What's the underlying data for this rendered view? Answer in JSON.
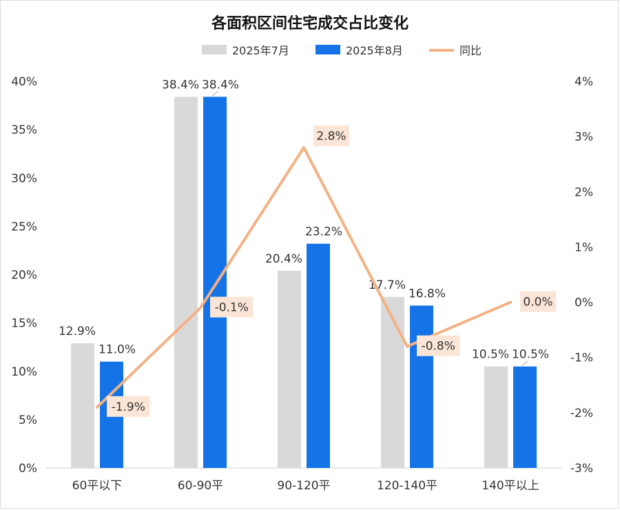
{
  "chart_data": {
    "type": "bar",
    "title": "各面积区间住宅成交占比变化",
    "categories": [
      "60平以下",
      "60-90平",
      "90-120平",
      "120-140平",
      "140平以上"
    ],
    "series": [
      {
        "name": "2025年7月",
        "type": "bar",
        "axis": "left",
        "color": "#d9d9d9",
        "values": [
          12.9,
          38.4,
          20.4,
          17.7,
          10.5
        ],
        "labels": [
          "12.9%",
          "38.4%",
          "20.4%",
          "17.7%",
          "10.5%"
        ]
      },
      {
        "name": "2025年8月",
        "type": "bar",
        "axis": "left",
        "color": "#1473e6",
        "values": [
          11.0,
          38.4,
          23.2,
          16.8,
          10.5
        ],
        "labels": [
          "11.0%",
          "38.4%",
          "23.2%",
          "16.8%",
          "10.5%"
        ]
      },
      {
        "name": "同比",
        "type": "line",
        "axis": "right",
        "color": "#f4b183",
        "values": [
          -1.9,
          -0.1,
          2.8,
          -0.8,
          0.0
        ],
        "labels": [
          "-1.9%",
          "-0.1%",
          "2.8%",
          "-0.8%",
          "0.0%"
        ]
      }
    ],
    "y_left": {
      "min": 0,
      "max": 40,
      "ticks": [
        "0%",
        "5%",
        "10%",
        "15%",
        "20%",
        "25%",
        "30%",
        "35%",
        "40%"
      ]
    },
    "y_right": {
      "min": -3,
      "max": 4,
      "ticks": [
        "-3%",
        "-2%",
        "-1%",
        "0%",
        "1%",
        "2%",
        "3%",
        "4%"
      ]
    },
    "legend_position": "top",
    "grid": false,
    "label_box_color": "#fbe5d6"
  }
}
